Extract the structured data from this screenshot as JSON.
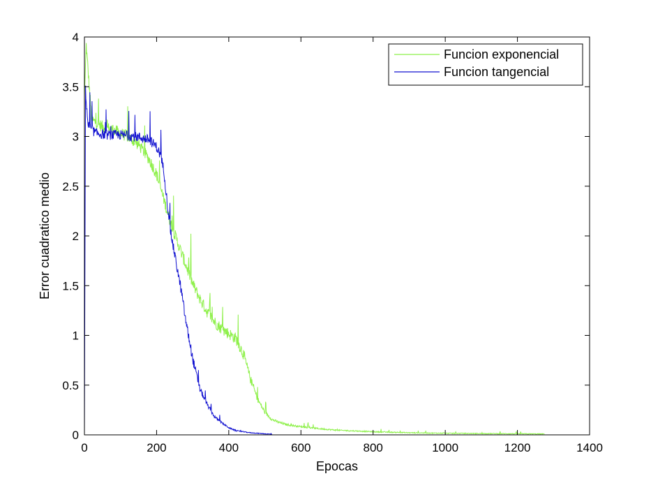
{
  "chart_data": {
    "type": "line",
    "xlabel": "Epocas",
    "ylabel": "Error cuadratico medio",
    "xlim": [
      0,
      1400
    ],
    "ylim": [
      0,
      4
    ],
    "xticks": [
      "0",
      "200",
      "400",
      "600",
      "800",
      "1000",
      "1200",
      "1400"
    ],
    "yticks": [
      "0",
      "0.5",
      "1",
      "1.5",
      "2",
      "2.5",
      "3",
      "3.5",
      "4"
    ],
    "legend_position": "top-right",
    "grid": false,
    "series": [
      {
        "name": "Funcion exponencial",
        "color": "#8ef04a",
        "noise": 0.12,
        "x": [
          0,
          5,
          20,
          50,
          80,
          120,
          150,
          180,
          200,
          220,
          240,
          260,
          280,
          300,
          320,
          340,
          360,
          380,
          400,
          420,
          440,
          460,
          480,
          500,
          520,
          540,
          560,
          600,
          650,
          700,
          800,
          900,
          1000,
          1100,
          1200,
          1275
        ],
        "y": [
          3.4,
          3.9,
          3.15,
          3.08,
          3.05,
          2.98,
          2.9,
          2.75,
          2.6,
          2.35,
          2.1,
          1.9,
          1.7,
          1.5,
          1.35,
          1.22,
          1.12,
          1.05,
          1.0,
          0.95,
          0.8,
          0.55,
          0.35,
          0.22,
          0.15,
          0.12,
          0.1,
          0.08,
          0.06,
          0.045,
          0.03,
          0.02,
          0.015,
          0.012,
          0.01,
          0.008
        ]
      },
      {
        "name": "Funcion tangencial",
        "color": "#1010d0",
        "noise": 0.1,
        "x": [
          0,
          3,
          10,
          30,
          60,
          100,
          150,
          180,
          200,
          210,
          220,
          230,
          240,
          250,
          260,
          270,
          280,
          290,
          300,
          310,
          320,
          340,
          360,
          380,
          400,
          420,
          440,
          460,
          480,
          500,
          520
        ],
        "y": [
          0.0,
          3.45,
          3.1,
          3.02,
          3.0,
          3.0,
          2.98,
          2.95,
          2.88,
          2.8,
          2.65,
          2.3,
          2.0,
          1.8,
          1.6,
          1.4,
          1.15,
          0.95,
          0.75,
          0.6,
          0.45,
          0.3,
          0.18,
          0.12,
          0.07,
          0.04,
          0.03,
          0.02,
          0.015,
          0.01,
          0.005
        ]
      }
    ]
  }
}
